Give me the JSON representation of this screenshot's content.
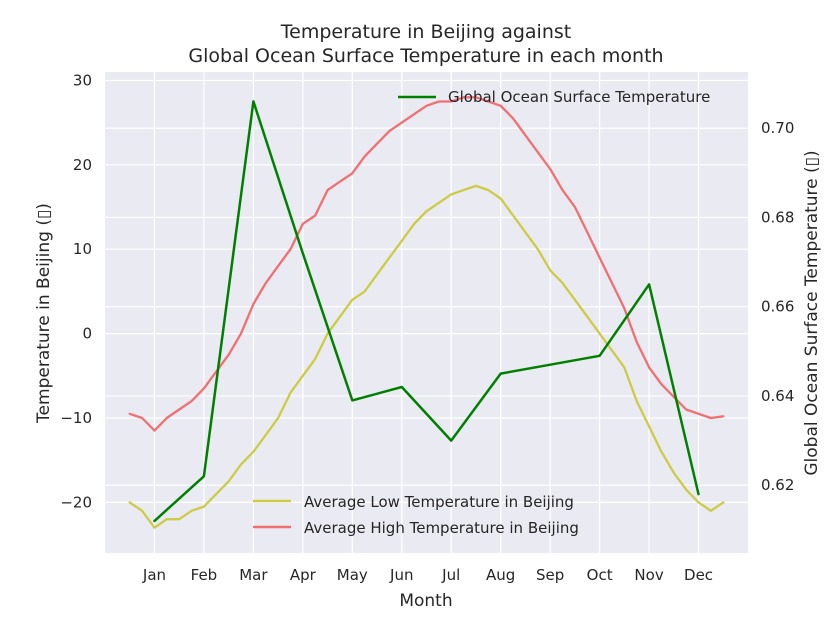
{
  "chart_data": {
    "type": "line",
    "title_line1": "Temperature in Beijing against",
    "title_line2": "Global Ocean Surface Temperature in each month",
    "xlabel": "Month",
    "ylabel_left": "Temperature in Beijing (▯)",
    "ylabel_right": "Global Ocean Surface Temperature (▯)",
    "categories": [
      "Jan",
      "Feb",
      "Mar",
      "Apr",
      "May",
      "Jun",
      "Jul",
      "Aug",
      "Sep",
      "Oct",
      "Nov",
      "Dec"
    ],
    "left_axis": {
      "ylim": [
        -26,
        31
      ],
      "ticks": [
        -20,
        -10,
        0,
        10,
        20,
        30
      ],
      "tick_labels": [
        "−20",
        "−10",
        "0",
        "10",
        "20",
        "30"
      ]
    },
    "right_axis": {
      "ylim": [
        0.6048,
        0.7126
      ],
      "ticks": [
        0.62,
        0.64,
        0.66,
        0.68,
        0.7
      ],
      "tick_labels": [
        "0.62",
        "0.64",
        "0.66",
        "0.68",
        "0.70"
      ]
    },
    "grid": true,
    "legend_right": {
      "placement": "top-right",
      "entries": [
        "Global Ocean Surface Temperature"
      ]
    },
    "legend_left": {
      "placement": "bottom-center",
      "entries": [
        "Average Low Temperature in Beijing",
        "Average High Temperature in Beijing"
      ]
    },
    "series": [
      {
        "name": "Global Ocean Surface Temperature",
        "axis": "right",
        "color": "#008000",
        "x": [
          1,
          2,
          3,
          4,
          5,
          6,
          7,
          8,
          9,
          10,
          11,
          12
        ],
        "values": [
          0.612,
          0.622,
          0.706,
          0.672,
          0.639,
          0.642,
          0.63,
          0.645,
          0.647,
          0.649,
          0.665,
          0.618
        ]
      },
      {
        "name": "Average Low Temperature in Beijing",
        "axis": "left",
        "color": "#cccc44",
        "x": [
          0.5,
          0.75,
          1.0,
          1.25,
          1.5,
          1.75,
          2.0,
          2.25,
          2.5,
          2.75,
          3.0,
          3.25,
          3.5,
          3.75,
          4.0,
          4.25,
          4.5,
          4.75,
          5.0,
          5.25,
          5.5,
          5.75,
          6.0,
          6.25,
          6.5,
          6.75,
          7.0,
          7.25,
          7.5,
          7.75,
          8.0,
          8.25,
          8.5,
          8.75,
          9.0,
          9.25,
          9.5,
          9.75,
          10.0,
          10.25,
          10.5,
          10.75,
          11.0,
          11.25,
          11.5,
          11.75,
          12.0,
          12.25,
          12.5
        ],
        "values": [
          -20,
          -21,
          -23,
          -22,
          -22,
          -21,
          -20.5,
          -19,
          -17.5,
          -15.5,
          -14,
          -12,
          -10,
          -7,
          -5,
          -3,
          0,
          2,
          4,
          5,
          7,
          9,
          11,
          13,
          14.5,
          15.5,
          16.5,
          17,
          17.5,
          17,
          16,
          14,
          12,
          10,
          7.5,
          6,
          4,
          2,
          0,
          -2,
          -4,
          -8,
          -11,
          -14,
          -16.5,
          -18.5,
          -20,
          -21,
          -20
        ]
      },
      {
        "name": "Average High Temperature in Beijing",
        "axis": "left",
        "color": "#f07070",
        "x": [
          0.5,
          0.75,
          1.0,
          1.25,
          1.5,
          1.75,
          2.0,
          2.25,
          2.5,
          2.75,
          3.0,
          3.25,
          3.5,
          3.75,
          4.0,
          4.25,
          4.5,
          4.75,
          5.0,
          5.25,
          5.5,
          5.75,
          6.0,
          6.25,
          6.5,
          6.75,
          7.0,
          7.25,
          7.5,
          7.75,
          8.0,
          8.25,
          8.5,
          8.75,
          9.0,
          9.25,
          9.5,
          9.75,
          10.0,
          10.25,
          10.5,
          10.75,
          11.0,
          11.25,
          11.5,
          11.75,
          12.0,
          12.25,
          12.5
        ],
        "values": [
          -9.5,
          -10,
          -11.5,
          -10,
          -9,
          -8,
          -6.5,
          -4.5,
          -2.5,
          0,
          3.5,
          6,
          8,
          10,
          13,
          14,
          17,
          18,
          19,
          21,
          22.5,
          24,
          25,
          26,
          27,
          27.5,
          27.5,
          28,
          28,
          27.5,
          27,
          25.5,
          23.5,
          21.5,
          19.5,
          17,
          15,
          12,
          9,
          6,
          3,
          -1,
          -4,
          -6,
          -7.5,
          -9,
          -9.5,
          -10,
          -9.8
        ]
      }
    ]
  }
}
